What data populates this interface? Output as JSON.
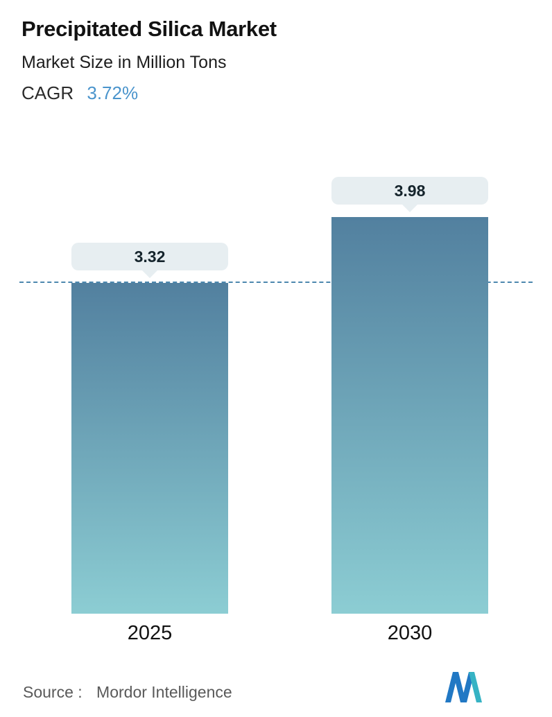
{
  "chart_data": {
    "type": "bar",
    "title": "Precipitated Silica Market",
    "subtitle": "Market Size in Million Tons",
    "cagr_label": "CAGR",
    "cagr_value": "3.72%",
    "categories": [
      "2025",
      "2030"
    ],
    "values": [
      3.32,
      3.98
    ],
    "value_labels": [
      "3.32",
      "3.98"
    ],
    "unit": "Million Tons",
    "ylim": [
      0,
      4.5
    ],
    "dashed_reference_value": 3.32,
    "legend": "none",
    "grid": "off"
  },
  "footer": {
    "source_label": "Source :",
    "source_value": "Mordor Intelligence",
    "logo": "mordor-intelligence-logo"
  },
  "colors": {
    "bar_gradient_top": "#52809f",
    "bar_gradient_bottom": "#8ccdd3",
    "dashed_line": "#4c87ae",
    "cagr_accent": "#4a94cc",
    "tooltip_bg": "#e7eef1",
    "title_text": "#121212",
    "source_text": "#595959",
    "logo_blue": "#2178c4",
    "logo_teal": "#36b3c4"
  }
}
